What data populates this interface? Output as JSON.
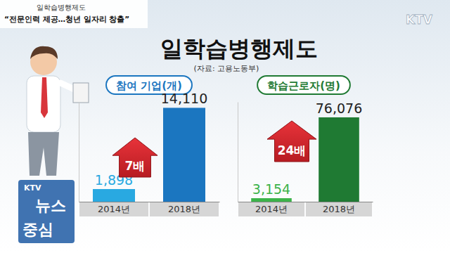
{
  "page": {
    "banner_label": "일학습병행제도",
    "banner_headline": "“전문인력 제공…청년 일자리 창출”",
    "channel_logo": "KTV",
    "title": "일학습병행제도",
    "source": "(자료: 고용노동부)",
    "program_logo": [
      "KTV",
      "뉴스",
      "중심"
    ]
  },
  "chart_data": [
    {
      "type": "bar",
      "title": "참여 기업(개)",
      "categories": [
        "2014년",
        "2018년"
      ],
      "values": [
        1898,
        14110
      ],
      "value_labels": [
        "1,898",
        "14,110"
      ],
      "colors": [
        "#29a9e1",
        "#1b76c0"
      ],
      "data_labels": true,
      "annotations": [
        "7배"
      ],
      "ylim": [
        0,
        15000
      ],
      "tick_labels": "x"
    },
    {
      "type": "bar",
      "title": "학습근로자(명)",
      "categories": [
        "2014년",
        "2018년"
      ],
      "values": [
        3154,
        76076
      ],
      "value_labels": [
        "3,154",
        "76,076"
      ],
      "colors": [
        "#3cb34a",
        "#1f7a33"
      ],
      "data_labels": true,
      "annotations": [
        "24배"
      ],
      "ylim": [
        0,
        90000
      ],
      "tick_labels": "x"
    }
  ]
}
